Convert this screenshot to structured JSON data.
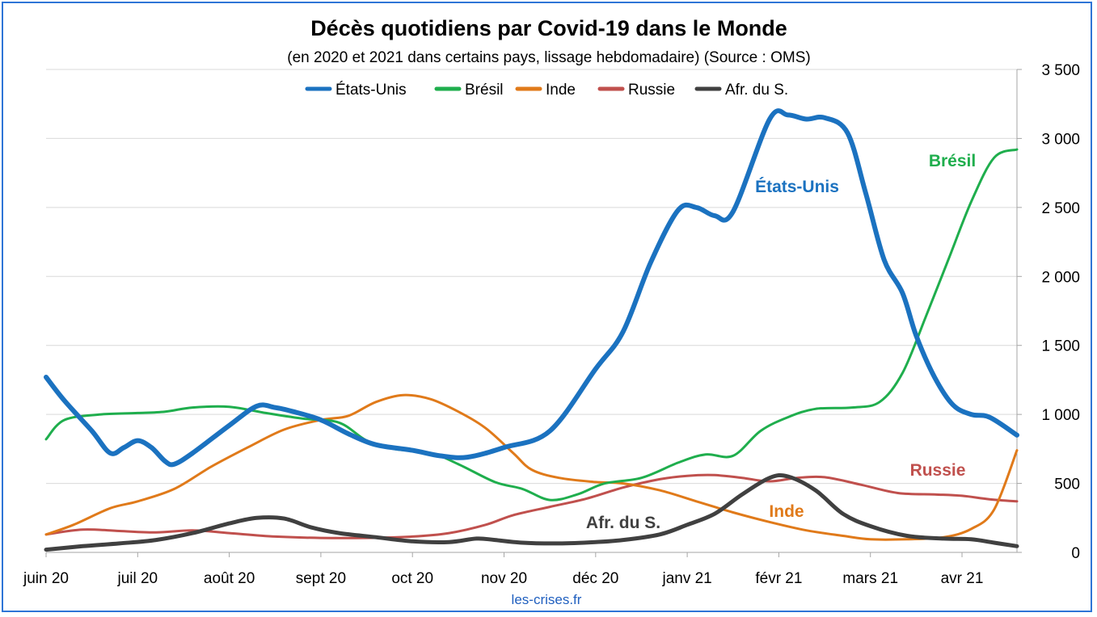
{
  "chart_data": {
    "type": "line",
    "title": "Décès quotidiens par Covid-19 dans le Monde",
    "subtitle": "(en 2020 et 2021 dans certains pays, lissage hebdomadaire) (Source : OMS)",
    "source_note": "les-crises.fr",
    "x_ticks": [
      "juin 20",
      "juil 20",
      "août 20",
      "sept 20",
      "oct 20",
      "nov 20",
      "déc 20",
      "janv 21",
      "févr 21",
      "mars 21",
      "avr 21"
    ],
    "x_range_months": [
      0,
      10.6
    ],
    "y_ticks": [
      "0",
      "500",
      "1 000",
      "1 500",
      "2 000",
      "2 500",
      "3 000",
      "3 500"
    ],
    "ylim": [
      0,
      3500
    ],
    "y_axis_side": "right",
    "grid": "horizontal",
    "legend_position": "top",
    "series": [
      {
        "name": "États-Unis",
        "color": "#1b72c0",
        "width": 6,
        "annotation": "États-Unis",
        "points": [
          [
            0,
            1270
          ],
          [
            0.2,
            1100
          ],
          [
            0.5,
            880
          ],
          [
            0.7,
            720
          ],
          [
            0.85,
            760
          ],
          [
            1.0,
            810
          ],
          [
            1.15,
            760
          ],
          [
            1.3,
            660
          ],
          [
            1.4,
            640
          ],
          [
            1.6,
            720
          ],
          [
            2.0,
            920
          ],
          [
            2.3,
            1060
          ],
          [
            2.5,
            1050
          ],
          [
            2.7,
            1020
          ],
          [
            3.0,
            960
          ],
          [
            3.3,
            860
          ],
          [
            3.6,
            780
          ],
          [
            4.0,
            740
          ],
          [
            4.3,
            700
          ],
          [
            4.6,
            690
          ],
          [
            5.0,
            760
          ],
          [
            5.5,
            880
          ],
          [
            6.0,
            1330
          ],
          [
            6.3,
            1600
          ],
          [
            6.6,
            2100
          ],
          [
            6.9,
            2480
          ],
          [
            7.1,
            2500
          ],
          [
            7.3,
            2440
          ],
          [
            7.5,
            2470
          ],
          [
            7.9,
            3140
          ],
          [
            8.1,
            3170
          ],
          [
            8.3,
            3140
          ],
          [
            8.5,
            3150
          ],
          [
            8.75,
            3040
          ],
          [
            8.95,
            2600
          ],
          [
            9.15,
            2120
          ],
          [
            9.35,
            1880
          ],
          [
            9.5,
            1570
          ],
          [
            9.7,
            1270
          ],
          [
            9.9,
            1070
          ],
          [
            10.1,
            1000
          ],
          [
            10.3,
            980
          ],
          [
            10.6,
            850
          ]
        ]
      },
      {
        "name": "Brésil",
        "color": "#1fae4d",
        "width": 3,
        "annotation": "Brésil",
        "points": [
          [
            0,
            820
          ],
          [
            0.2,
            960
          ],
          [
            0.6,
            1000
          ],
          [
            1.0,
            1010
          ],
          [
            1.3,
            1020
          ],
          [
            1.6,
            1050
          ],
          [
            2.0,
            1055
          ],
          [
            2.4,
            1010
          ],
          [
            2.8,
            970
          ],
          [
            3.2,
            940
          ],
          [
            3.5,
            810
          ],
          [
            3.8,
            750
          ],
          [
            4.2,
            720
          ],
          [
            4.5,
            640
          ],
          [
            4.9,
            510
          ],
          [
            5.2,
            460
          ],
          [
            5.5,
            380
          ],
          [
            5.8,
            420
          ],
          [
            6.1,
            500
          ],
          [
            6.5,
            540
          ],
          [
            6.9,
            650
          ],
          [
            7.2,
            710
          ],
          [
            7.5,
            700
          ],
          [
            7.8,
            880
          ],
          [
            8.1,
            980
          ],
          [
            8.4,
            1040
          ],
          [
            8.8,
            1050
          ],
          [
            9.1,
            1090
          ],
          [
            9.35,
            1300
          ],
          [
            9.6,
            1700
          ],
          [
            9.85,
            2120
          ],
          [
            10.1,
            2540
          ],
          [
            10.35,
            2860
          ],
          [
            10.6,
            2920
          ]
        ]
      },
      {
        "name": "Inde",
        "color": "#e07a1a",
        "width": 3,
        "annotation": "Inde",
        "points": [
          [
            0,
            130
          ],
          [
            0.3,
            200
          ],
          [
            0.7,
            320
          ],
          [
            1.0,
            370
          ],
          [
            1.4,
            460
          ],
          [
            1.8,
            620
          ],
          [
            2.2,
            760
          ],
          [
            2.6,
            890
          ],
          [
            3.0,
            960
          ],
          [
            3.3,
            990
          ],
          [
            3.6,
            1090
          ],
          [
            3.9,
            1140
          ],
          [
            4.2,
            1110
          ],
          [
            4.5,
            1020
          ],
          [
            4.8,
            900
          ],
          [
            5.1,
            720
          ],
          [
            5.3,
            600
          ],
          [
            5.6,
            540
          ],
          [
            6.0,
            510
          ],
          [
            6.3,
            500
          ],
          [
            6.7,
            450
          ],
          [
            7.1,
            370
          ],
          [
            7.5,
            290
          ],
          [
            7.9,
            220
          ],
          [
            8.3,
            160
          ],
          [
            8.7,
            120
          ],
          [
            9.0,
            95
          ],
          [
            9.4,
            95
          ],
          [
            9.8,
            110
          ],
          [
            10.1,
            170
          ],
          [
            10.35,
            310
          ],
          [
            10.6,
            740
          ]
        ]
      },
      {
        "name": "Russie",
        "color": "#c0504d",
        "width": 3,
        "annotation": "Russie",
        "points": [
          [
            0,
            130
          ],
          [
            0.4,
            165
          ],
          [
            0.8,
            155
          ],
          [
            1.2,
            145
          ],
          [
            1.6,
            160
          ],
          [
            2.0,
            140
          ],
          [
            2.5,
            115
          ],
          [
            3.0,
            105
          ],
          [
            3.5,
            105
          ],
          [
            4.0,
            115
          ],
          [
            4.4,
            140
          ],
          [
            4.8,
            200
          ],
          [
            5.1,
            270
          ],
          [
            5.5,
            330
          ],
          [
            5.9,
            390
          ],
          [
            6.3,
            470
          ],
          [
            6.7,
            530
          ],
          [
            7.0,
            555
          ],
          [
            7.3,
            560
          ],
          [
            7.6,
            540
          ],
          [
            7.9,
            515
          ],
          [
            8.2,
            540
          ],
          [
            8.5,
            545
          ],
          [
            8.9,
            490
          ],
          [
            9.3,
            430
          ],
          [
            9.7,
            420
          ],
          [
            10.0,
            410
          ],
          [
            10.3,
            385
          ],
          [
            10.6,
            370
          ]
        ]
      },
      {
        "name": "Afr. du S.",
        "color": "#404040",
        "width": 5,
        "annotation": "Afr. du S.",
        "points": [
          [
            0,
            20
          ],
          [
            0.4,
            45
          ],
          [
            0.8,
            65
          ],
          [
            1.2,
            90
          ],
          [
            1.6,
            140
          ],
          [
            2.0,
            210
          ],
          [
            2.3,
            250
          ],
          [
            2.6,
            245
          ],
          [
            2.9,
            180
          ],
          [
            3.2,
            140
          ],
          [
            3.6,
            110
          ],
          [
            4.0,
            80
          ],
          [
            4.4,
            75
          ],
          [
            4.7,
            100
          ],
          [
            4.9,
            90
          ],
          [
            5.2,
            70
          ],
          [
            5.6,
            65
          ],
          [
            6.0,
            75
          ],
          [
            6.3,
            90
          ],
          [
            6.7,
            130
          ],
          [
            7.0,
            200
          ],
          [
            7.3,
            280
          ],
          [
            7.6,
            420
          ],
          [
            7.9,
            540
          ],
          [
            8.1,
            550
          ],
          [
            8.4,
            450
          ],
          [
            8.7,
            280
          ],
          [
            9.0,
            190
          ],
          [
            9.4,
            120
          ],
          [
            9.8,
            100
          ],
          [
            10.1,
            95
          ],
          [
            10.35,
            70
          ],
          [
            10.6,
            45
          ]
        ]
      }
    ]
  }
}
